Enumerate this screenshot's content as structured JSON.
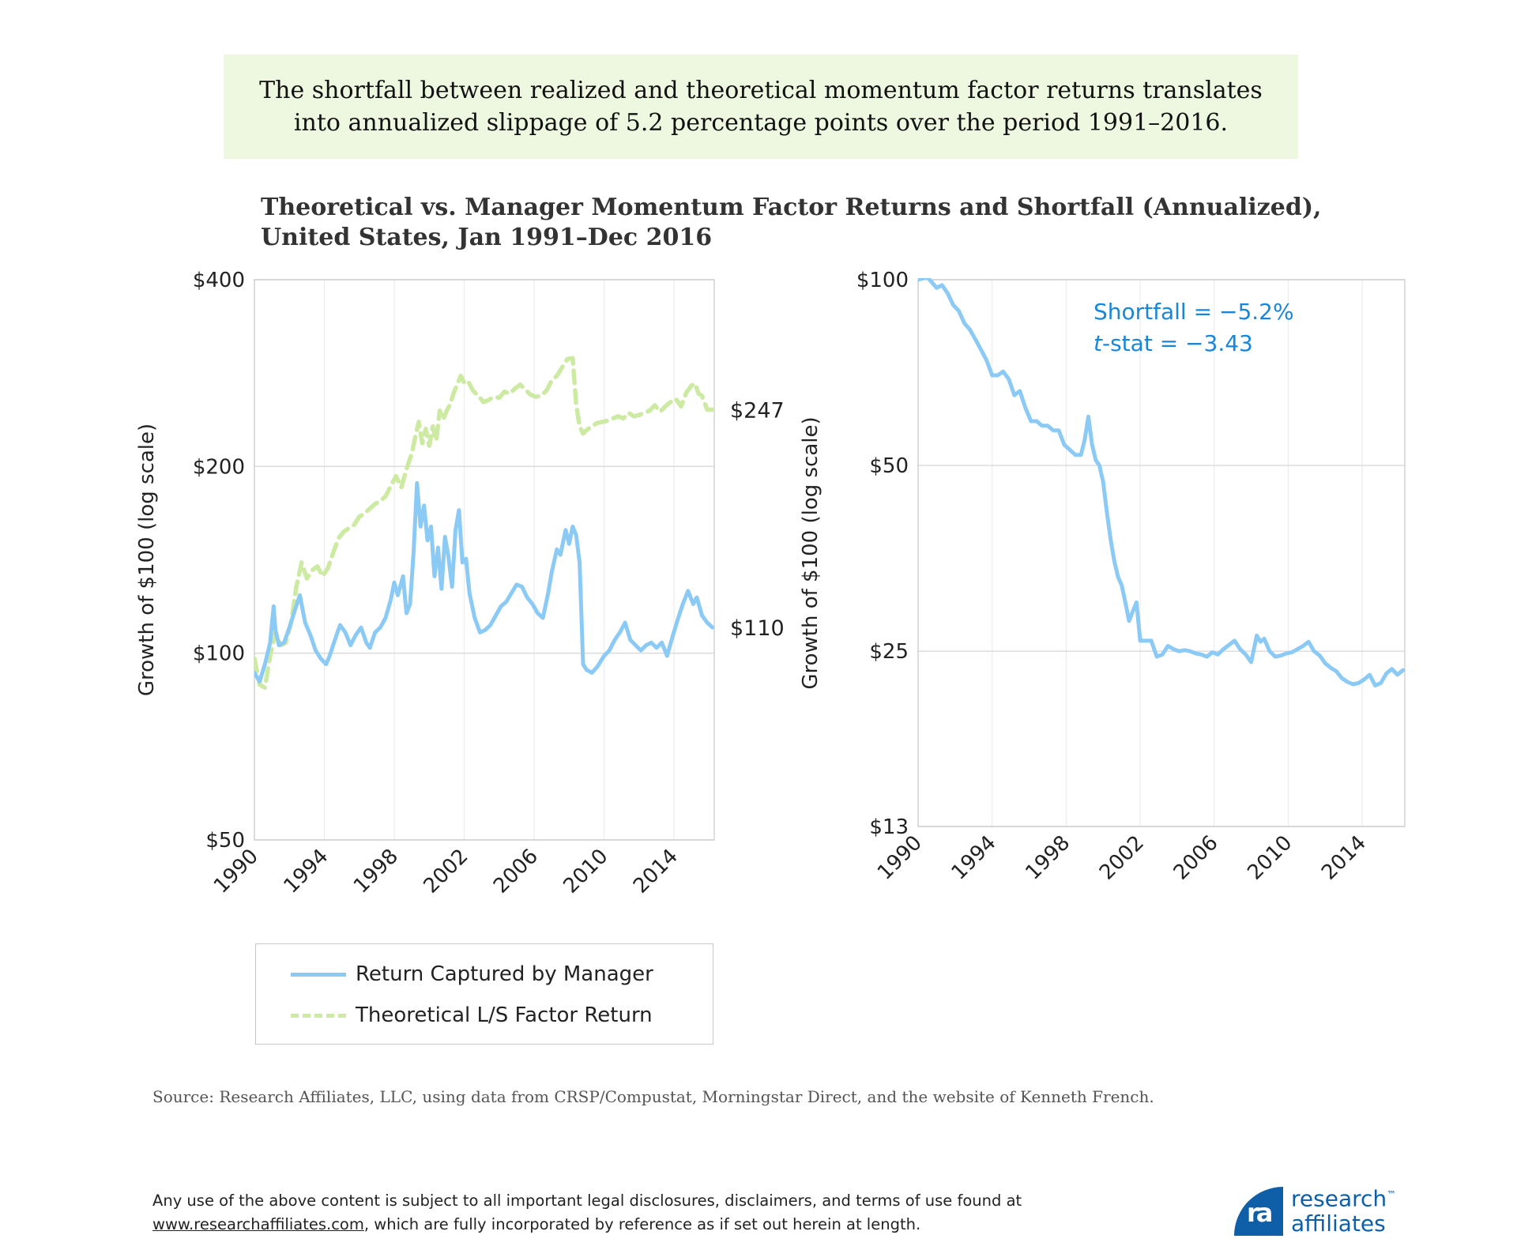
{
  "callout": "The shortfall between realized and theoretical momentum factor returns translates into annualized slippage of 5.2 percentage points over the period 1991–2016.",
  "title_line1": "Theoretical vs. Manager Momentum Factor Returns and Shortfall (Annualized),",
  "title_line2": "United States, Jan 1991–Dec 2016",
  "colors": {
    "manager": "#8ccaf6",
    "theoretical": "#cdeaa3",
    "annotation": "#1a86d8",
    "grid": "#d9d9d9"
  },
  "chart_data": [
    {
      "type": "line",
      "ylabel": "Growth of $100 (log scale)",
      "yscale": "log",
      "ylim": [
        50,
        400
      ],
      "yticks": [
        50,
        100,
        200,
        400
      ],
      "ytick_labels": [
        "$50",
        "$100",
        "$200",
        "$400"
      ],
      "xlim": [
        1990,
        2016.3
      ],
      "xticks": [
        1990,
        1994,
        1998,
        2002,
        2006,
        2010,
        2014
      ],
      "xtick_labels": [
        "1990",
        "1994",
        "1998",
        "2002",
        "2006",
        "2010",
        "2014"
      ],
      "legend": {
        "position": "bottom",
        "entries": [
          "Return Captured by Manager",
          "Theoretical L/S Factor Return"
        ]
      },
      "end_labels": [
        "$247",
        "$110"
      ],
      "series": [
        {
          "name": "Return Captured by Manager",
          "style": "solid",
          "x": [
            1990.0,
            1990.3,
            1990.6,
            1990.9,
            1991.1,
            1991.2,
            1991.4,
            1991.7,
            1992.0,
            1992.3,
            1992.6,
            1992.9,
            1993.2,
            1993.5,
            1993.8,
            1994.1,
            1994.3,
            1994.6,
            1994.9,
            1995.2,
            1995.5,
            1995.8,
            1996.1,
            1996.4,
            1996.6,
            1996.9,
            1997.2,
            1997.5,
            1997.8,
            1998.0,
            1998.2,
            1998.5,
            1998.7,
            1998.9,
            1999.1,
            1999.3,
            1999.5,
            1999.7,
            1999.9,
            2000.1,
            2000.3,
            2000.5,
            2000.7,
            2000.9,
            2001.1,
            2001.3,
            2001.5,
            2001.7,
            2001.9,
            2002.1,
            2002.3,
            2002.6,
            2002.9,
            2003.2,
            2003.5,
            2003.8,
            2004.1,
            2004.4,
            2004.7,
            2005.0,
            2005.3,
            2005.6,
            2005.9,
            2006.2,
            2006.5,
            2006.8,
            2007.0,
            2007.3,
            2007.5,
            2007.8,
            2008.0,
            2008.2,
            2008.4,
            2008.6,
            2008.8,
            2009.0,
            2009.3,
            2009.6,
            2010.0,
            2010.3,
            2010.6,
            2010.9,
            2011.2,
            2011.5,
            2011.8,
            2012.1,
            2012.4,
            2012.7,
            2013.0,
            2013.3,
            2013.6,
            2013.9,
            2014.2,
            2014.5,
            2014.8,
            2015.1,
            2015.3,
            2015.6,
            2015.9,
            2016.2
          ],
          "y": [
            93,
            90,
            96,
            104,
            119,
            109,
            103,
            104,
            110,
            117,
            124,
            112,
            107,
            101,
            98,
            96,
            99,
            105,
            111,
            108,
            103,
            107,
            110,
            104,
            102,
            108,
            110,
            114,
            122,
            130,
            124,
            133,
            116,
            120,
            145,
            188,
            160,
            173,
            152,
            160,
            133,
            148,
            127,
            154,
            143,
            128,
            158,
            170,
            140,
            142,
            125,
            114,
            108,
            109,
            111,
            115,
            119,
            121,
            125,
            129,
            128,
            123,
            120,
            116,
            114,
            125,
            135,
            147,
            144,
            158,
            150,
            160,
            155,
            140,
            96,
            94,
            93,
            95,
            99,
            101,
            105,
            108,
            112,
            105,
            103,
            101,
            103,
            104,
            102,
            104,
            99,
            106,
            113,
            120,
            126,
            120,
            123,
            115,
            112,
            110
          ]
        },
        {
          "name": "Theoretical L/S Factor Return",
          "style": "dashed",
          "x": [
            1990.0,
            1990.3,
            1990.6,
            1990.9,
            1991.2,
            1991.5,
            1991.8,
            1992.1,
            1992.4,
            1992.7,
            1993.0,
            1993.3,
            1993.6,
            1993.9,
            1994.2,
            1994.5,
            1994.8,
            1995.1,
            1995.4,
            1995.7,
            1996.0,
            1996.3,
            1996.6,
            1996.9,
            1997.2,
            1997.5,
            1997.8,
            1998.1,
            1998.4,
            1998.7,
            1999.0,
            1999.2,
            1999.4,
            1999.6,
            1999.8,
            2000.0,
            2000.2,
            2000.4,
            2000.6,
            2000.8,
            2001.0,
            2001.2,
            2001.4,
            2001.6,
            2001.8,
            2002.0,
            2002.2,
            2002.5,
            2002.8,
            2003.1,
            2003.4,
            2003.7,
            2004.0,
            2004.3,
            2004.6,
            2004.9,
            2005.2,
            2005.5,
            2005.8,
            2006.1,
            2006.4,
            2006.7,
            2007.0,
            2007.3,
            2007.6,
            2007.9,
            2008.2,
            2008.4,
            2008.6,
            2008.8,
            2009.0,
            2009.3,
            2009.6,
            2009.9,
            2010.2,
            2010.5,
            2010.8,
            2011.1,
            2011.4,
            2011.7,
            2012.0,
            2012.3,
            2012.6,
            2012.9,
            2013.2,
            2013.5,
            2013.8,
            2014.1,
            2014.4,
            2014.7,
            2015.0,
            2015.2,
            2015.4,
            2015.6,
            2015.9,
            2016.2
          ],
          "y": [
            98,
            89,
            88,
            99,
            108,
            103,
            104,
            112,
            128,
            140,
            132,
            136,
            138,
            133,
            137,
            145,
            153,
            157,
            159,
            161,
            166,
            168,
            171,
            174,
            176,
            179,
            186,
            193,
            185,
            198,
            210,
            223,
            236,
            218,
            230,
            216,
            232,
            220,
            246,
            238,
            246,
            252,
            263,
            271,
            280,
            273,
            275,
            265,
            260,
            254,
            256,
            259,
            258,
            264,
            262,
            267,
            271,
            266,
            261,
            259,
            260,
            265,
            275,
            280,
            289,
            298,
            299,
            252,
            232,
            226,
            229,
            232,
            235,
            236,
            237,
            239,
            241,
            239,
            244,
            241,
            242,
            244,
            246,
            251,
            245,
            250,
            254,
            257,
            250,
            263,
            270,
            272,
            262,
            260,
            247,
            247
          ]
        }
      ]
    },
    {
      "type": "line",
      "ylabel": "Growth of $100 (log scale)",
      "yscale": "log",
      "ylim": [
        13,
        100
      ],
      "yticks": [
        13,
        25,
        50,
        100
      ],
      "ytick_labels": [
        "$13",
        "$25",
        "$50",
        "$100"
      ],
      "xlim": [
        1990,
        2016.3
      ],
      "xticks": [
        1990,
        1994,
        1998,
        2002,
        2006,
        2010,
        2014
      ],
      "xtick_labels": [
        "1990",
        "1994",
        "1998",
        "2002",
        "2006",
        "2010",
        "2014"
      ],
      "annotation": {
        "shortfall": "Shortfall = −5.2%",
        "tstat_prefix": "t",
        "tstat_rest": "-stat = −3.43"
      },
      "series": [
        {
          "name": "Return Captured by Manager",
          "style": "solid",
          "x": [
            1990.0,
            1990.5,
            1991.0,
            1991.3,
            1991.6,
            1991.9,
            1992.2,
            1992.5,
            1992.8,
            1993.1,
            1993.4,
            1993.7,
            1994.0,
            1994.3,
            1994.6,
            1994.9,
            1995.2,
            1995.5,
            1995.8,
            1996.1,
            1996.4,
            1996.7,
            1997.0,
            1997.3,
            1997.6,
            1997.9,
            1998.2,
            1998.5,
            1998.8,
            1999.0,
            1999.2,
            1999.4,
            1999.6,
            1999.8,
            2000.0,
            2000.2,
            2000.4,
            2000.6,
            2000.8,
            2001.0,
            2001.2,
            2001.4,
            2001.6,
            2001.8,
            2002.0,
            2002.3,
            2002.6,
            2002.9,
            2003.2,
            2003.5,
            2003.8,
            2004.1,
            2004.4,
            2004.7,
            2005.0,
            2005.3,
            2005.6,
            2005.9,
            2006.2,
            2006.5,
            2006.8,
            2007.1,
            2007.4,
            2007.7,
            2008.0,
            2008.3,
            2008.5,
            2008.7,
            2009.0,
            2009.3,
            2009.6,
            2009.9,
            2010.2,
            2010.5,
            2010.8,
            2011.1,
            2011.4,
            2011.7,
            2012.0,
            2012.3,
            2012.6,
            2012.9,
            2013.2,
            2013.5,
            2013.8,
            2014.1,
            2014.4,
            2014.7,
            2015.0,
            2015.3,
            2015.6,
            2015.9,
            2016.2
          ],
          "y": [
            100,
            101,
            97,
            98,
            95,
            91,
            89,
            85,
            83,
            80,
            77,
            74,
            70,
            70,
            71,
            69,
            65,
            66,
            62,
            59,
            59,
            58,
            58,
            57,
            57,
            54,
            53,
            52,
            52,
            55,
            60,
            54,
            51,
            50,
            47,
            42,
            38,
            35,
            33,
            32,
            30,
            28,
            29,
            30,
            26,
            26,
            26,
            24.5,
            24.7,
            25.5,
            25.2,
            25.0,
            25.1,
            25.0,
            24.8,
            24.7,
            24.5,
            24.9,
            24.7,
            25.2,
            25.6,
            26.0,
            25.2,
            24.7,
            24.0,
            26.5,
            25.9,
            26.2,
            25.0,
            24.5,
            24.6,
            24.8,
            24.9,
            25.2,
            25.5,
            25.9,
            25.0,
            24.6,
            23.9,
            23.5,
            23.2,
            22.6,
            22.3,
            22.1,
            22.2,
            22.5,
            22.9,
            22.0,
            22.2,
            23.0,
            23.4,
            22.9,
            23.3
          ]
        }
      ]
    }
  ],
  "source": "Source: Research Affiliates, LLC, using data from CRSP/Compustat, Morningstar Direct, and the website of Kenneth French.",
  "disclaimer_line1": "Any use of the above content is subject to all important legal disclosures, disclaimers, and terms of use found at",
  "disclaimer_link": "www.researchaffiliates.com",
  "disclaimer_line2_rest": ", which are fully incorporated by reference as if set out herein at length.",
  "logo": {
    "mark": "ra",
    "word1": "research",
    "word2": "affiliates",
    "tm": "™"
  }
}
